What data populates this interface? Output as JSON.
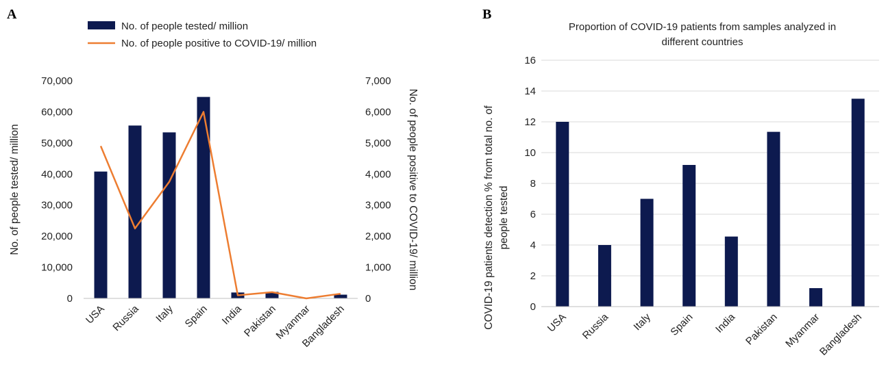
{
  "chart_data": [
    {
      "panel": "A",
      "type": "bar",
      "categories": [
        "USA",
        "Russia",
        "Italy",
        "Spain",
        "India",
        "Pakistan",
        "Myanmar",
        "Bangladesh"
      ],
      "series": [
        {
          "name": "No. of people tested/ million",
          "type": "bar",
          "axis": "left",
          "color": "#0d1a4f",
          "values": [
            40800,
            55600,
            53400,
            64800,
            1900,
            2100,
            100,
            1200
          ]
        },
        {
          "name": "No. of people positive to COVID-19/ million",
          "type": "line",
          "axis": "right",
          "color": "#ed7d31",
          "values": [
            4900,
            2250,
            3750,
            6000,
            100,
            200,
            0,
            150
          ]
        }
      ],
      "ylabel": "No. of people tested/ million",
      "y2label": "No. of people positive to COVID-19/ million",
      "ylim": [
        0,
        70000
      ],
      "y2lim": [
        0,
        7000
      ],
      "yticks": [
        "0",
        "10,000",
        "20,000",
        "30,000",
        "40,000",
        "50,000",
        "60,000",
        "70,000"
      ],
      "y2ticks": [
        "0",
        "1,000",
        "2,000",
        "3,000",
        "4,000",
        "5,000",
        "6,000",
        "7,000"
      ],
      "legend": "top",
      "grid": false
    },
    {
      "panel": "B",
      "type": "bar",
      "title": "Proportion of COVID-19 patients from samples analyzed in different countries",
      "title_lines": [
        "Proportion of COVID-19 patients from samples analyzed in",
        "different countries"
      ],
      "categories": [
        "USA",
        "Russia",
        "Italy",
        "Spain",
        "India",
        "Pakistan",
        "Myanmar",
        "Bangladesh"
      ],
      "values": [
        12,
        4,
        7,
        9.2,
        4.55,
        11.35,
        1.2,
        13.5
      ],
      "color": "#0d1a4f",
      "ylabel": "COVID-19 patients detection % from total no. of people tested",
      "ylabel_lines": [
        "COVID-19 patients detection % from total no. of",
        "people tested"
      ],
      "ylim": [
        0,
        16
      ],
      "yticks": [
        "0",
        "2",
        "4",
        "6",
        "8",
        "10",
        "12",
        "14",
        "16"
      ],
      "grid": true
    }
  ]
}
